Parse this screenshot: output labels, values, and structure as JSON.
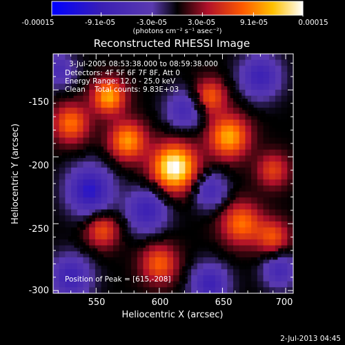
{
  "chart_data": {
    "type": "heatmap",
    "title": "Reconstructed RHESSI Image",
    "xlabel": "Heliocentric X (arcsec)",
    "ylabel": "Heliocentric Y (arcsec)",
    "xlim": [
      516,
      706
    ],
    "ylim": [
      -302,
      -123
    ],
    "x_ticks": [
      "550",
      "600",
      "650",
      "700"
    ],
    "x_tick_values": [
      550,
      600,
      650,
      700
    ],
    "y_ticks": [
      "-150",
      "-200",
      "-250",
      "-300"
    ],
    "y_tick_values": [
      -150,
      -200,
      -250,
      -300
    ],
    "colorbar": {
      "range": [
        -0.00015,
        0.00015
      ],
      "tick_labels": [
        "-0.00015",
        "-9.1e-05",
        "-3.0e-05",
        "3.0e-05",
        "9.1e-05",
        "0.00015"
      ],
      "tick_values": [
        -0.00015,
        -9.1e-05,
        -3e-05,
        3e-05,
        9.1e-05,
        0.00015
      ],
      "unit_label": "(photons cm⁻² s⁻¹ asec⁻²)"
    },
    "annotations": {
      "time_range": "3-Jul-2005 08:53:38.000 to 08:59:38.000",
      "detectors": "Detectors: 4F 5F 6F 7F 8F, Att 0",
      "energy": "Energy Range: 12.0 - 25.0 keV",
      "clean": "Clean    Total counts: 9.83E+03",
      "peak": "Position of Peak = [615,-208]"
    },
    "peak_position": [
      615,
      -208
    ],
    "blobs_description": "smooth field of emission features",
    "features": [
      {
        "x": 612,
        "y": -208,
        "sign": 1.0,
        "amp": 1.0,
        "sigma": 12
      },
      {
        "x": 575,
        "y": -188,
        "sign": 1.0,
        "amp": 0.65,
        "sigma": 10
      },
      {
        "x": 560,
        "y": -155,
        "sign": 1.0,
        "amp": 0.7,
        "sigma": 9
      },
      {
        "x": 530,
        "y": -175,
        "sign": 1.0,
        "amp": 0.55,
        "sigma": 10
      },
      {
        "x": 655,
        "y": -185,
        "sign": 1.0,
        "amp": 0.7,
        "sigma": 11
      },
      {
        "x": 640,
        "y": -155,
        "sign": 1.0,
        "amp": 0.5,
        "sigma": 9
      },
      {
        "x": 665,
        "y": -250,
        "sign": 1.0,
        "amp": 0.55,
        "sigma": 11
      },
      {
        "x": 690,
        "y": -260,
        "sign": 1.0,
        "amp": 0.45,
        "sigma": 9
      },
      {
        "x": 600,
        "y": -280,
        "sign": 1.0,
        "amp": 0.5,
        "sigma": 10
      },
      {
        "x": 555,
        "y": -255,
        "sign": 1.0,
        "amp": 0.45,
        "sigma": 9
      },
      {
        "x": 690,
        "y": -210,
        "sign": 1.0,
        "amp": 0.4,
        "sigma": 9
      },
      {
        "x": 545,
        "y": -225,
        "sign": -1.0,
        "amp": 0.7,
        "sigma": 12
      },
      {
        "x": 590,
        "y": -240,
        "sign": -1.0,
        "amp": 0.55,
        "sigma": 11
      },
      {
        "x": 620,
        "y": -165,
        "sign": -1.0,
        "amp": 0.45,
        "sigma": 10
      },
      {
        "x": 680,
        "y": -140,
        "sign": -1.0,
        "amp": 0.55,
        "sigma": 11
      },
      {
        "x": 640,
        "y": -225,
        "sign": -1.0,
        "amp": 0.45,
        "sigma": 9
      },
      {
        "x": 530,
        "y": -290,
        "sign": -1.0,
        "amp": 0.55,
        "sigma": 11
      },
      {
        "x": 640,
        "y": -295,
        "sign": -1.0,
        "amp": 0.55,
        "sigma": 10
      },
      {
        "x": 695,
        "y": -285,
        "sign": -1.0,
        "amp": 0.45,
        "sigma": 9
      },
      {
        "x": 520,
        "y": -135,
        "sign": -1.0,
        "amp": 0.4,
        "sigma": 9
      }
    ]
  },
  "footer": {
    "timestamp": "2-Jul-2013 04:45"
  }
}
